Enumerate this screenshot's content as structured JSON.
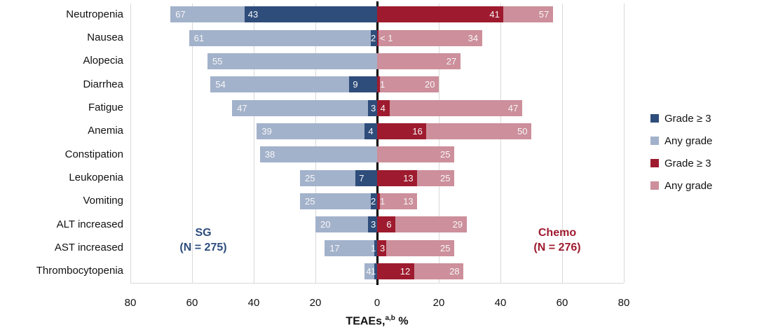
{
  "chart_data": {
    "type": "bar",
    "variant": "diverging-horizontal-tornado",
    "xlabel_prefix": "TEAEs,",
    "xlabel_superscript": "a,b",
    "xlabel_suffix": " %",
    "x_ticks": [
      {
        "label": "80",
        "value": -80
      },
      {
        "label": "60",
        "value": -60
      },
      {
        "label": "40",
        "value": -40
      },
      {
        "label": "20",
        "value": -20
      },
      {
        "label": "0",
        "value": 0
      },
      {
        "label": "20",
        "value": 20
      },
      {
        "label": "40",
        "value": 40
      },
      {
        "label": "60",
        "value": 60
      },
      {
        "label": "80",
        "value": 80
      }
    ],
    "grid": true,
    "categories": [
      "Neutropenia",
      "Nausea",
      "Alopecia",
      "Diarrhea",
      "Fatigue",
      "Anemia",
      "Constipation",
      "Leukopenia",
      "Vomiting",
      "ALT increased",
      "AST increased",
      "Thrombocytopenia"
    ],
    "left_group": {
      "name": "SG",
      "n_label": "(N = 275)",
      "color": "#2E4D7E"
    },
    "right_group": {
      "name": "Chemo",
      "n_label": "(N = 276)",
      "color": "#9E1B2F"
    },
    "series": [
      {
        "id": "sg_any",
        "name": "Any grade",
        "group": "SG",
        "side": "left",
        "layer": "base",
        "color": "#A3B2CB",
        "values": [
          67,
          61,
          55,
          54,
          47,
          39,
          38,
          25,
          25,
          20,
          17,
          4
        ],
        "labels": [
          "67",
          "61",
          "55",
          "54",
          "47",
          "39",
          "38",
          "25",
          "25",
          "20",
          "17",
          "4"
        ]
      },
      {
        "id": "sg_g3",
        "name": "Grade ≥ 3",
        "group": "SG",
        "side": "left",
        "layer": "overlay",
        "color": "#2E4D7B",
        "values": [
          43,
          2,
          null,
          9,
          3,
          4,
          null,
          7,
          2,
          3,
          1,
          1
        ],
        "labels": [
          "43",
          "2",
          null,
          "9",
          "3",
          "4",
          null,
          "7",
          "2",
          "3",
          "1",
          "1"
        ]
      },
      {
        "id": "chemo_g3",
        "name": "Grade ≥ 3",
        "group": "Chemo",
        "side": "right",
        "layer": "overlay",
        "color": "#9E1B2F",
        "values": [
          41,
          0.5,
          null,
          1,
          4,
          16,
          null,
          13,
          1,
          6,
          3,
          12
        ],
        "labels": [
          "41",
          "< 1",
          null,
          "1",
          "4",
          "16",
          null,
          "13",
          "1",
          "6",
          "3",
          "12"
        ]
      },
      {
        "id": "chemo_any",
        "name": "Any grade",
        "group": "Chemo",
        "side": "right",
        "layer": "base",
        "color": "#CC8F9B",
        "values": [
          57,
          34,
          27,
          20,
          47,
          50,
          25,
          25,
          13,
          29,
          25,
          28
        ],
        "labels": [
          "57",
          "34",
          "27",
          "20",
          "47",
          "50",
          "25",
          "25",
          "13",
          "29",
          "25",
          "28"
        ]
      }
    ],
    "legend": [
      {
        "label": "Grade ≥ 3",
        "color": "#2E4D7B"
      },
      {
        "label": "Any grade",
        "color": "#A3B2CB"
      },
      {
        "label": "Grade ≥ 3",
        "color": "#9E1B2F"
      },
      {
        "label": "Any grade",
        "color": "#CC8F9B"
      }
    ]
  }
}
